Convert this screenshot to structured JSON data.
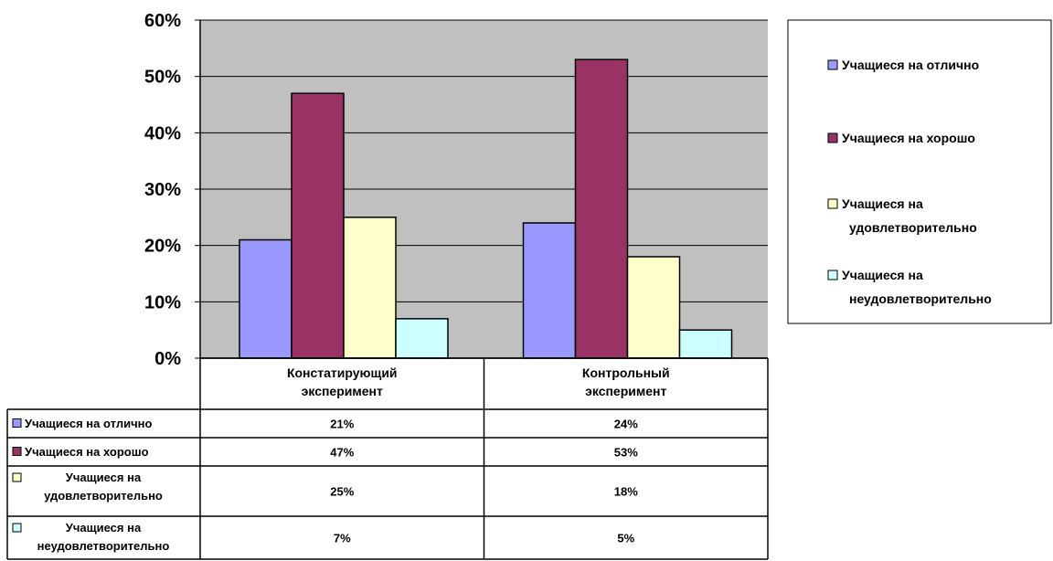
{
  "chart_data": {
    "type": "bar",
    "categories": [
      "Констатирующий эксперимент",
      "Контрольный эксперимент"
    ],
    "category_lines": [
      [
        "Констатирующий",
        "эксперимент"
      ],
      [
        "Контрольный",
        "эксперимент"
      ]
    ],
    "series": [
      {
        "name": "Учащиеся на отлично",
        "name_lines": [
          "Учащиеся на отлично"
        ],
        "color": "#9999FF",
        "values": [
          21,
          24
        ],
        "labels": [
          "21%",
          "24%"
        ]
      },
      {
        "name": "Учащиеся на хорошо",
        "name_lines": [
          "Учащиеся на хорошо"
        ],
        "color": "#993366",
        "values": [
          47,
          53
        ],
        "labels": [
          "47%",
          "53%"
        ]
      },
      {
        "name": "Учащиеся на удовлетворительно",
        "name_lines": [
          "Учащиеся на",
          "удовлетворительно"
        ],
        "color": "#FFFFCC",
        "values": [
          25,
          18
        ],
        "labels": [
          "25%",
          "18%"
        ]
      },
      {
        "name": "Учащиеся на неудовлетворительно",
        "name_lines": [
          "Учащиеся на",
          "неудовлетворительно"
        ],
        "color": "#CCFFFF",
        "values": [
          7,
          5
        ],
        "labels": [
          "7%",
          "5%"
        ]
      }
    ],
    "ylim": [
      0,
      60
    ],
    "yticks": [
      "0%",
      "10%",
      "20%",
      "30%",
      "40%",
      "50%",
      "60%"
    ],
    "grid": true,
    "plot_background": "#C0C0C0",
    "legend": "right",
    "data_table": true
  }
}
